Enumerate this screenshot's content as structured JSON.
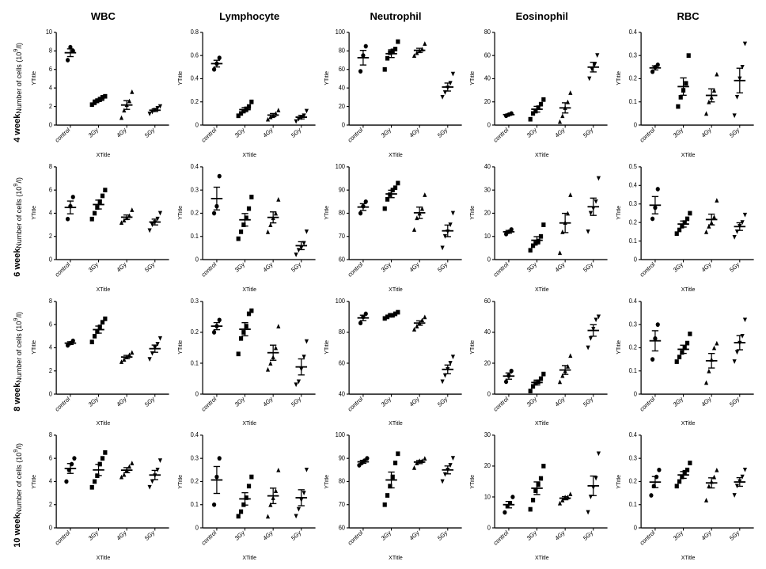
{
  "layout": {
    "rows": 4,
    "cols": 5
  },
  "styling": {
    "background_color": "#ffffff",
    "axis_color": "#000000",
    "tick_color": "#000000",
    "data_color": "#000000",
    "errorbar_color": "#000000",
    "font_family": "Arial",
    "col_header_fontsize": 13,
    "col_header_fontweight": "bold",
    "row_header_fontsize": 11,
    "row_header_fontweight": "bold",
    "axis_label_fontsize": 7,
    "tick_label_fontsize": 7,
    "marker_size": 5,
    "line_width": 1.2,
    "errorbar_cap_width": 8,
    "mean_bar_width": 14
  },
  "categories": [
    "control",
    "3Gy",
    "4Gy",
    "5Gy"
  ],
  "category_markers": [
    "circle",
    "square",
    "triangle-up",
    "triangle-down"
  ],
  "col_headers": [
    "WBC",
    "Lymphocyte",
    "Neutrophil",
    "Eosinophil",
    "RBC"
  ],
  "row_headers": [
    "4 week",
    "6 week",
    "8 week",
    "10 week"
  ],
  "row_ylabel_main": "Number of cells (10",
  "row_ylabel_sup": "9",
  "row_ylabel_tail": "/l)",
  "panel_ylabel": "YTitle",
  "panel_xlabel": "XTitle",
  "panels": [
    [
      {
        "ylim": [
          0,
          10
        ],
        "ytick_step": 2,
        "series": [
          {
            "cat": "control",
            "points": [
              7.0,
              8.4,
              8.0
            ]
          },
          {
            "cat": "3Gy",
            "points": [
              2.2,
              2.4,
              2.6,
              2.8,
              3.0,
              3.1
            ]
          },
          {
            "cat": "4Gy",
            "points": [
              0.8,
              1.6,
              2.2,
              2.6,
              3.6
            ]
          },
          {
            "cat": "5Gy",
            "points": [
              1.2,
              1.4,
              1.6,
              1.8,
              2.0
            ]
          }
        ]
      },
      {
        "ylim": [
          0,
          0.8
        ],
        "ytick_step": 0.2,
        "series": [
          {
            "cat": "control",
            "points": [
              0.48,
              0.53,
              0.58
            ]
          },
          {
            "cat": "3Gy",
            "points": [
              0.08,
              0.1,
              0.12,
              0.14,
              0.16,
              0.2
            ]
          },
          {
            "cat": "4Gy",
            "points": [
              0.05,
              0.07,
              0.08,
              0.1,
              0.13
            ]
          },
          {
            "cat": "5Gy",
            "points": [
              0.03,
              0.05,
              0.06,
              0.08,
              0.12
            ]
          }
        ]
      },
      {
        "ylim": [
          0,
          100
        ],
        "ytick_step": 20,
        "series": [
          {
            "cat": "control",
            "points": [
              58,
              75,
              85
            ]
          },
          {
            "cat": "3Gy",
            "points": [
              60,
              72,
              78,
              80,
              82,
              90
            ]
          },
          {
            "cat": "4Gy",
            "points": [
              75,
              78,
              80,
              82,
              88
            ]
          },
          {
            "cat": "5Gy",
            "points": [
              30,
              35,
              40,
              45,
              55
            ]
          }
        ]
      },
      {
        "ylim": [
          0,
          80
        ],
        "ytick_step": 20,
        "series": [
          {
            "cat": "control",
            "points": [
              8,
              9,
              10
            ]
          },
          {
            "cat": "3Gy",
            "points": [
              5,
              10,
              12,
              15,
              18,
              22
            ]
          },
          {
            "cat": "4Gy",
            "points": [
              3,
              8,
              15,
              20,
              28
            ]
          },
          {
            "cat": "5Gy",
            "points": [
              40,
              48,
              52,
              60
            ]
          }
        ]
      },
      {
        "ylim": [
          0,
          0.4
        ],
        "ytick_step": 0.1,
        "series": [
          {
            "cat": "control",
            "points": [
              0.23,
              0.25,
              0.26
            ]
          },
          {
            "cat": "3Gy",
            "points": [
              0.08,
              0.12,
              0.15,
              0.18,
              0.3
            ]
          },
          {
            "cat": "4Gy",
            "points": [
              0.05,
              0.1,
              0.12,
              0.15,
              0.22
            ]
          },
          {
            "cat": "5Gy",
            "points": [
              0.04,
              0.12,
              0.2,
              0.25,
              0.35
            ]
          }
        ]
      }
    ],
    [
      {
        "ylim": [
          0,
          8
        ],
        "ytick_step": 2,
        "series": [
          {
            "cat": "control",
            "points": [
              3.5,
              4.6,
              5.4
            ]
          },
          {
            "cat": "3Gy",
            "points": [
              3.5,
              4.0,
              4.5,
              5.0,
              5.5,
              6.0
            ]
          },
          {
            "cat": "4Gy",
            "points": [
              3.2,
              3.4,
              3.6,
              3.8,
              4.3
            ]
          },
          {
            "cat": "5Gy",
            "points": [
              2.5,
              3.0,
              3.2,
              3.5,
              4.0
            ]
          }
        ]
      },
      {
        "ylim": [
          0,
          0.4
        ],
        "ytick_step": 0.1,
        "series": [
          {
            "cat": "control",
            "points": [
              0.2,
              0.23,
              0.36
            ]
          },
          {
            "cat": "3Gy",
            "points": [
              0.09,
              0.12,
              0.15,
              0.18,
              0.22,
              0.27
            ]
          },
          {
            "cat": "4Gy",
            "points": [
              0.12,
              0.15,
              0.18,
              0.2,
              0.26
            ]
          },
          {
            "cat": "5Gy",
            "points": [
              0.02,
              0.04,
              0.05,
              0.07,
              0.12
            ]
          }
        ]
      },
      {
        "ylim": [
          60,
          100
        ],
        "ytick_step": 10,
        "series": [
          {
            "cat": "control",
            "points": [
              80,
              83,
              85
            ]
          },
          {
            "cat": "3Gy",
            "points": [
              82,
              86,
              88,
              90,
              91,
              93
            ]
          },
          {
            "cat": "4Gy",
            "points": [
              73,
              78,
              80,
              82,
              88
            ]
          },
          {
            "cat": "5Gy",
            "points": [
              65,
              70,
              72,
              75,
              80
            ]
          }
        ]
      },
      {
        "ylim": [
          0,
          40
        ],
        "ytick_step": 10,
        "series": [
          {
            "cat": "control",
            "points": [
              11,
              12,
              13
            ]
          },
          {
            "cat": "3Gy",
            "points": [
              4,
              6,
              7,
              8,
              10,
              15
            ]
          },
          {
            "cat": "4Gy",
            "points": [
              3,
              12,
              16,
              20,
              28
            ]
          },
          {
            "cat": "5Gy",
            "points": [
              12,
              20,
              22,
              25,
              35
            ]
          }
        ]
      },
      {
        "ylim": [
          0,
          0.5
        ],
        "ytick_step": 0.1,
        "series": [
          {
            "cat": "control",
            "points": [
              0.22,
              0.28,
              0.38
            ]
          },
          {
            "cat": "3Gy",
            "points": [
              0.14,
              0.16,
              0.18,
              0.2,
              0.22,
              0.25
            ]
          },
          {
            "cat": "4Gy",
            "points": [
              0.15,
              0.18,
              0.2,
              0.23,
              0.32
            ]
          },
          {
            "cat": "5Gy",
            "points": [
              0.12,
              0.15,
              0.18,
              0.2,
              0.24
            ]
          }
        ]
      }
    ],
    [
      {
        "ylim": [
          0,
          8
        ],
        "ytick_step": 2,
        "series": [
          {
            "cat": "control",
            "points": [
              4.2,
              4.4,
              4.6
            ]
          },
          {
            "cat": "3Gy",
            "points": [
              4.5,
              5.0,
              5.4,
              5.8,
              6.2,
              6.5
            ]
          },
          {
            "cat": "4Gy",
            "points": [
              2.8,
              3.0,
              3.2,
              3.4,
              3.6
            ]
          },
          {
            "cat": "5Gy",
            "points": [
              3.0,
              3.5,
              4.0,
              4.3,
              4.8
            ]
          }
        ]
      },
      {
        "ylim": [
          0,
          0.3
        ],
        "ytick_step": 0.1,
        "series": [
          {
            "cat": "control",
            "points": [
              0.2,
              0.22,
              0.24
            ]
          },
          {
            "cat": "3Gy",
            "points": [
              0.13,
              0.18,
              0.2,
              0.22,
              0.26,
              0.27
            ]
          },
          {
            "cat": "4Gy",
            "points": [
              0.08,
              0.1,
              0.12,
              0.15,
              0.22
            ]
          },
          {
            "cat": "5Gy",
            "points": [
              0.03,
              0.04,
              0.08,
              0.12,
              0.17
            ]
          }
        ]
      },
      {
        "ylim": [
          40,
          100
        ],
        "ytick_step": 20,
        "series": [
          {
            "cat": "control",
            "points": [
              86,
              90,
              92
            ]
          },
          {
            "cat": "3Gy",
            "points": [
              89,
              90,
              91,
              91,
              92,
              93
            ]
          },
          {
            "cat": "4Gy",
            "points": [
              82,
              84,
              86,
              88,
              90
            ]
          },
          {
            "cat": "5Gy",
            "points": [
              48,
              52,
              56,
              60,
              64
            ]
          }
        ]
      },
      {
        "ylim": [
          0,
          60
        ],
        "ytick_step": 20,
        "series": [
          {
            "cat": "control",
            "points": [
              8,
              12,
              15
            ]
          },
          {
            "cat": "3Gy",
            "points": [
              2,
              5,
              7,
              8,
              10,
              13
            ]
          },
          {
            "cat": "4Gy",
            "points": [
              8,
              12,
              15,
              18,
              25
            ]
          },
          {
            "cat": "5Gy",
            "points": [
              30,
              36,
              42,
              48,
              50
            ]
          }
        ]
      },
      {
        "ylim": [
          0,
          0.4
        ],
        "ytick_step": 0.1,
        "series": [
          {
            "cat": "control",
            "points": [
              0.15,
              0.24,
              0.3
            ]
          },
          {
            "cat": "3Gy",
            "points": [
              0.14,
              0.16,
              0.18,
              0.2,
              0.22,
              0.26
            ]
          },
          {
            "cat": "4Gy",
            "points": [
              0.05,
              0.1,
              0.15,
              0.2,
              0.22
            ]
          },
          {
            "cat": "5Gy",
            "points": [
              0.14,
              0.18,
              0.22,
              0.25,
              0.32
            ]
          }
        ]
      }
    ],
    [
      {
        "ylim": [
          0,
          8
        ],
        "ytick_step": 2,
        "series": [
          {
            "cat": "control",
            "points": [
              4.0,
              5.0,
              5.5,
              6.0
            ]
          },
          {
            "cat": "3Gy",
            "points": [
              3.5,
              4.0,
              4.5,
              5.5,
              6.0,
              6.5
            ]
          },
          {
            "cat": "4Gy",
            "points": [
              4.4,
              4.6,
              5.0,
              5.3,
              5.6
            ]
          },
          {
            "cat": "5Gy",
            "points": [
              3.5,
              4.0,
              4.5,
              5.0,
              5.8
            ]
          }
        ]
      },
      {
        "ylim": [
          0,
          0.4
        ],
        "ytick_step": 0.1,
        "series": [
          {
            "cat": "control",
            "points": [
              0.1,
              0.22,
              0.3
            ]
          },
          {
            "cat": "3Gy",
            "points": [
              0.05,
              0.07,
              0.1,
              0.13,
              0.18,
              0.22
            ]
          },
          {
            "cat": "4Gy",
            "points": [
              0.05,
              0.1,
              0.13,
              0.16,
              0.25
            ]
          },
          {
            "cat": "5Gy",
            "points": [
              0.05,
              0.08,
              0.12,
              0.15,
              0.25
            ]
          }
        ]
      },
      {
        "ylim": [
          60,
          100
        ],
        "ytick_step": 10,
        "series": [
          {
            "cat": "control",
            "points": [
              87,
              88,
              89,
              90
            ]
          },
          {
            "cat": "3Gy",
            "points": [
              70,
              74,
              78,
              82,
              88,
              92
            ]
          },
          {
            "cat": "4Gy",
            "points": [
              86,
              88,
              89,
              89,
              90
            ]
          },
          {
            "cat": "5Gy",
            "points": [
              80,
              83,
              85,
              87,
              90
            ]
          }
        ]
      },
      {
        "ylim": [
          0,
          30
        ],
        "ytick_step": 10,
        "series": [
          {
            "cat": "control",
            "points": [
              5,
              7,
              8,
              10
            ]
          },
          {
            "cat": "3Gy",
            "points": [
              6,
              9,
              12,
              14,
              16,
              20
            ]
          },
          {
            "cat": "4Gy",
            "points": [
              8,
              9,
              10,
              10,
              11
            ]
          },
          {
            "cat": "5Gy",
            "points": [
              5,
              10,
              13,
              16,
              24
            ]
          }
        ]
      },
      {
        "ylim": [
          0,
          0.4
        ],
        "ytick_step": 0.1,
        "series": [
          {
            "cat": "control",
            "points": [
              0.14,
              0.18,
              0.22,
              0.25
            ]
          },
          {
            "cat": "3Gy",
            "points": [
              0.18,
              0.2,
              0.22,
              0.24,
              0.25,
              0.28
            ]
          },
          {
            "cat": "4Gy",
            "points": [
              0.12,
              0.18,
              0.2,
              0.22,
              0.25
            ]
          },
          {
            "cat": "5Gy",
            "points": [
              0.14,
              0.18,
              0.2,
              0.22,
              0.25
            ]
          }
        ]
      }
    ]
  ]
}
